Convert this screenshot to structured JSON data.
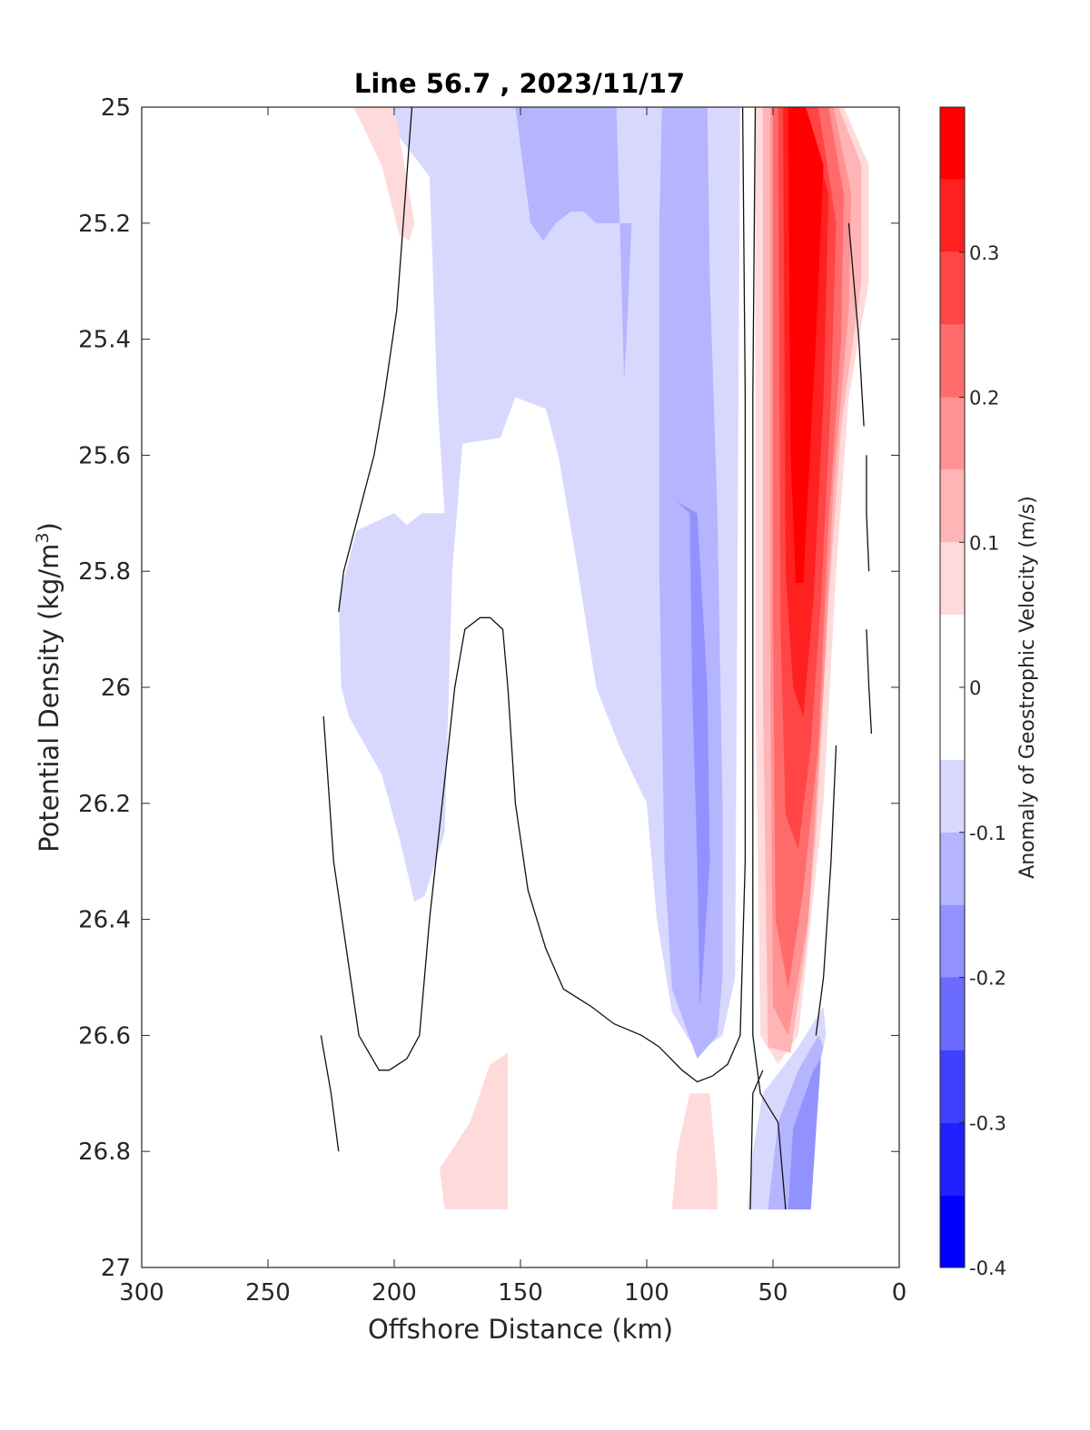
{
  "chart_data": {
    "type": "contour",
    "title": "Line 56.7 , 2023/11/17",
    "xlabel": "Offshore Distance (km)",
    "ylabel_main": "Potential Density (kg/m",
    "ylabel_sup": "3",
    "ylabel_close": ")",
    "xlim": [
      300,
      0
    ],
    "ylim": [
      27,
      25
    ],
    "x_reversed": true,
    "y_reversed": true,
    "xticks": [
      300,
      250,
      200,
      150,
      100,
      50,
      0
    ],
    "xtick_labels": [
      "300",
      "250",
      "200",
      "150",
      "100",
      "50",
      "0"
    ],
    "yticks": [
      25,
      25.2,
      25.4,
      25.6,
      25.8,
      26,
      26.2,
      26.4,
      26.6,
      26.8,
      27
    ],
    "ytick_labels": [
      "25",
      "25.2",
      "25.4",
      "25.6",
      "25.8",
      "26",
      "26.2",
      "26.4",
      "26.6",
      "26.8",
      "27"
    ],
    "colorbar": {
      "label": "Anomaly of Geostrophic Velocity (m/s)",
      "limits": [
        -0.4,
        0.4
      ],
      "ticks": [
        -0.4,
        -0.3,
        -0.2,
        -0.1,
        0,
        0.1,
        0.2,
        0.3
      ],
      "tick_labels": [
        "-0.4",
        "-0.3",
        "-0.2",
        "-0.1",
        "0",
        "0.1",
        "0.2",
        "0.3"
      ],
      "levels": [
        {
          "from": -0.4,
          "to": -0.35,
          "color": "#0000ff"
        },
        {
          "from": -0.35,
          "to": -0.3,
          "color": "#2020ff"
        },
        {
          "from": -0.3,
          "to": -0.25,
          "color": "#4040ff"
        },
        {
          "from": -0.25,
          "to": -0.2,
          "color": "#6b6bff"
        },
        {
          "from": -0.2,
          "to": -0.15,
          "color": "#9292ff"
        },
        {
          "from": -0.15,
          "to": -0.1,
          "color": "#b4b4ff"
        },
        {
          "from": -0.1,
          "to": -0.05,
          "color": "#d8d8ff"
        },
        {
          "from": -0.05,
          "to": 0.05,
          "color": "#ffffff"
        },
        {
          "from": 0.05,
          "to": 0.1,
          "color": "#ffdada"
        },
        {
          "from": 0.1,
          "to": 0.15,
          "color": "#ffb5b5"
        },
        {
          "from": 0.15,
          "to": 0.2,
          "color": "#ff9292"
        },
        {
          "from": 0.2,
          "to": 0.25,
          "color": "#ff6b6b"
        },
        {
          "from": 0.25,
          "to": 0.3,
          "color": "#ff4545"
        },
        {
          "from": 0.3,
          "to": 0.35,
          "color": "#ff2020"
        },
        {
          "from": 0.35,
          "to": 0.4,
          "color": "#ff0000"
        }
      ]
    },
    "filled_regions": [
      {
        "level": -0.075,
        "points": [
          [
            180,
            25
          ],
          [
            207,
            25
          ],
          [
            186,
            25.12
          ],
          [
            183,
            25.5
          ],
          [
            180,
            25.7
          ],
          [
            189,
            25.7
          ],
          [
            195,
            25.72
          ],
          [
            200,
            25.7
          ],
          [
            210,
            25.72
          ],
          [
            215,
            25.73
          ],
          [
            222,
            25.85
          ],
          [
            221,
            26.0
          ],
          [
            218,
            26.05
          ],
          [
            205,
            26.15
          ],
          [
            198,
            26.26
          ],
          [
            192,
            26.37
          ],
          [
            188,
            26.36
          ],
          [
            180,
            26.25
          ],
          [
            177,
            25.8
          ],
          [
            173,
            25.58
          ],
          [
            158,
            25.57
          ],
          [
            152,
            25.5
          ],
          [
            140,
            25.52
          ],
          [
            135,
            25.6
          ],
          [
            128,
            25.78
          ],
          [
            120,
            26.0
          ],
          [
            111,
            26.1
          ],
          [
            100,
            26.2
          ],
          [
            96,
            26.4
          ],
          [
            90,
            26.56
          ],
          [
            80,
            26.63
          ],
          [
            70,
            26.6
          ],
          [
            65,
            26.5
          ],
          [
            63,
            25
          ],
          [
            180,
            25
          ]
        ]
      },
      {
        "level": -0.125,
        "points": [
          [
            152,
            25
          ],
          [
            112,
            25
          ],
          [
            110,
            25.3
          ],
          [
            109,
            25.47
          ],
          [
            108,
            25.4
          ],
          [
            106,
            25.2
          ],
          [
            120,
            25.2
          ],
          [
            125,
            25.18
          ],
          [
            130,
            25.18
          ],
          [
            136,
            25.2
          ],
          [
            141,
            25.23
          ],
          [
            146,
            25.2
          ],
          [
            152,
            25
          ]
        ]
      },
      {
        "level": -0.125,
        "points": [
          [
            94,
            25
          ],
          [
            76,
            25
          ],
          [
            75,
            25.3
          ],
          [
            72,
            25.7
          ],
          [
            70,
            26.2
          ],
          [
            70,
            26.5
          ],
          [
            72,
            26.6
          ],
          [
            80,
            26.64
          ],
          [
            90,
            26.52
          ],
          [
            93,
            26.3
          ],
          [
            95,
            25.8
          ],
          [
            95,
            25.2
          ],
          [
            94,
            25
          ]
        ]
      },
      {
        "level": -0.175,
        "points": [
          [
            88,
            25.68
          ],
          [
            83,
            25.7
          ],
          [
            82,
            26.0
          ],
          [
            80,
            26.3
          ],
          [
            79,
            26.55
          ],
          [
            78,
            26.5
          ],
          [
            75,
            26.3
          ],
          [
            76,
            26.0
          ],
          [
            80,
            25.7
          ],
          [
            88,
            25.68
          ]
        ]
      },
      {
        "level": -0.075,
        "points": [
          [
            60,
            26.9
          ],
          [
            58,
            26.8
          ],
          [
            54,
            26.7
          ],
          [
            40,
            26.62
          ],
          [
            30,
            26.55
          ],
          [
            29,
            26.6
          ],
          [
            40,
            26.8
          ],
          [
            48,
            26.9
          ],
          [
            60,
            26.9
          ]
        ]
      },
      {
        "level": -0.125,
        "points": [
          [
            52,
            26.9
          ],
          [
            48,
            26.75
          ],
          [
            40,
            26.66
          ],
          [
            32,
            26.6
          ],
          [
            30,
            26.62
          ],
          [
            40,
            26.8
          ],
          [
            44,
            26.9
          ],
          [
            52,
            26.9
          ]
        ]
      },
      {
        "level": -0.175,
        "points": [
          [
            44,
            26.9
          ],
          [
            42,
            26.76
          ],
          [
            34,
            26.66
          ],
          [
            31,
            26.64
          ],
          [
            35,
            26.9
          ],
          [
            44,
            26.9
          ]
        ]
      },
      {
        "level": 0.075,
        "points": [
          [
            216,
            25
          ],
          [
            200,
            25
          ],
          [
            198,
            25.05
          ],
          [
            192,
            25.2
          ],
          [
            194,
            25.23
          ],
          [
            198,
            25.22
          ],
          [
            205,
            25.1
          ],
          [
            216,
            25
          ]
        ]
      },
      {
        "level": 0.075,
        "points": [
          [
            182,
            26.83
          ],
          [
            170,
            26.75
          ],
          [
            162,
            26.65
          ],
          [
            155,
            26.63
          ],
          [
            155,
            26.9
          ],
          [
            180,
            26.9
          ],
          [
            182,
            26.83
          ]
        ]
      },
      {
        "level": 0.075,
        "points": [
          [
            90,
            26.9
          ],
          [
            88,
            26.8
          ],
          [
            83,
            26.7
          ],
          [
            75,
            26.7
          ],
          [
            72,
            26.85
          ],
          [
            72,
            26.9
          ],
          [
            90,
            26.9
          ]
        ]
      },
      {
        "level": 0.075,
        "points": [
          [
            57,
            25
          ],
          [
            22,
            25
          ],
          [
            12,
            25.1
          ],
          [
            12,
            25.3
          ],
          [
            20,
            25.5
          ],
          [
            25,
            25.8
          ],
          [
            30,
            26.2
          ],
          [
            35,
            26.4
          ],
          [
            40,
            26.6
          ],
          [
            48,
            26.65
          ],
          [
            55,
            26.6
          ],
          [
            57,
            26.0
          ],
          [
            57,
            25
          ]
        ]
      },
      {
        "level": 0.125,
        "points": [
          [
            54,
            25
          ],
          [
            24,
            25
          ],
          [
            15,
            25.1
          ],
          [
            15,
            25.3
          ],
          [
            23,
            25.55
          ],
          [
            28,
            25.85
          ],
          [
            33,
            26.25
          ],
          [
            37,
            26.45
          ],
          [
            43,
            26.63
          ],
          [
            52,
            26.62
          ],
          [
            54,
            26.0
          ],
          [
            54,
            25
          ]
        ]
      },
      {
        "level": 0.175,
        "points": [
          [
            51,
            25
          ],
          [
            26,
            25
          ],
          [
            19,
            25.15
          ],
          [
            20,
            25.35
          ],
          [
            26,
            25.65
          ],
          [
            30,
            26.0
          ],
          [
            36,
            26.4
          ],
          [
            44,
            26.6
          ],
          [
            50,
            26.55
          ],
          [
            51,
            26.0
          ],
          [
            51,
            25
          ]
        ]
      },
      {
        "level": 0.225,
        "points": [
          [
            50,
            25
          ],
          [
            28,
            25
          ],
          [
            22,
            25.15
          ],
          [
            23,
            25.4
          ],
          [
            28,
            25.72
          ],
          [
            32,
            26.1
          ],
          [
            38,
            26.35
          ],
          [
            44,
            26.52
          ],
          [
            49,
            26.4
          ],
          [
            50,
            25.9
          ],
          [
            50,
            25
          ]
        ]
      },
      {
        "level": 0.275,
        "points": [
          [
            48,
            25
          ],
          [
            32,
            25
          ],
          [
            25,
            25.2
          ],
          [
            27,
            25.5
          ],
          [
            31,
            25.85
          ],
          [
            35,
            26.1
          ],
          [
            40,
            26.28
          ],
          [
            45,
            26.22
          ],
          [
            47,
            25.9
          ],
          [
            48,
            25
          ]
        ]
      },
      {
        "level": 0.325,
        "points": [
          [
            46,
            25
          ],
          [
            38,
            25
          ],
          [
            28,
            25.15
          ],
          [
            30,
            25.5
          ],
          [
            34,
            25.85
          ],
          [
            38,
            26.05
          ],
          [
            42,
            26.0
          ],
          [
            45,
            25.8
          ],
          [
            46,
            25
          ]
        ]
      },
      {
        "level": 0.375,
        "points": [
          [
            44,
            25
          ],
          [
            37,
            25
          ],
          [
            30,
            25.1
          ],
          [
            33,
            25.4
          ],
          [
            36,
            25.65
          ],
          [
            38,
            25.82
          ],
          [
            41,
            25.82
          ],
          [
            43,
            25.6
          ],
          [
            44,
            25
          ]
        ]
      }
    ],
    "contour_lines": [
      [
        [
          193,
          25
        ],
        [
          199,
          25.35
        ],
        [
          204,
          25.5
        ],
        [
          208,
          25.6
        ],
        [
          220,
          25.8
        ],
        [
          222,
          25.87
        ]
      ],
      [
        [
          228,
          26.05
        ],
        [
          224,
          26.3
        ],
        [
          214,
          26.6
        ],
        [
          206,
          26.66
        ],
        [
          202,
          26.66
        ],
        [
          195,
          26.64
        ],
        [
          190,
          26.6
        ],
        [
          186,
          26.4
        ],
        [
          181,
          26.2
        ],
        [
          176,
          26.0
        ],
        [
          172,
          25.9
        ],
        [
          166,
          25.88
        ],
        [
          162,
          25.88
        ],
        [
          157,
          25.9
        ],
        [
          155,
          26.0
        ],
        [
          152,
          26.2
        ],
        [
          147,
          26.35
        ],
        [
          140,
          26.45
        ],
        [
          133,
          26.52
        ],
        [
          122,
          26.55
        ],
        [
          113,
          26.58
        ],
        [
          102,
          26.6
        ],
        [
          95,
          26.62
        ],
        [
          86,
          26.66
        ],
        [
          80,
          26.68
        ],
        [
          74,
          26.67
        ],
        [
          68,
          26.65
        ],
        [
          63,
          26.6
        ],
        [
          61,
          26.3
        ],
        [
          61,
          25.5
        ],
        [
          62,
          25
        ]
      ],
      [
        [
          57,
          25
        ],
        [
          58,
          25.5
        ],
        [
          58,
          26.0
        ],
        [
          58,
          26.5
        ],
        [
          58,
          26.6
        ],
        [
          55,
          26.7
        ],
        [
          48,
          26.75
        ],
        [
          45,
          26.9
        ]
      ],
      [
        [
          229,
          26.6
        ],
        [
          225,
          26.7
        ],
        [
          222,
          26.8
        ]
      ],
      [
        [
          59,
          26.9
        ],
        [
          58,
          26.7
        ],
        [
          54,
          26.66
        ]
      ],
      [
        [
          20,
          25.2
        ],
        [
          16,
          25.4
        ],
        [
          14,
          25.55
        ]
      ],
      [
        [
          13,
          25.6
        ],
        [
          13,
          25.7
        ],
        [
          12,
          25.8
        ]
      ],
      [
        [
          13,
          25.9
        ],
        [
          12,
          26.0
        ],
        [
          11,
          26.08
        ]
      ],
      [
        [
          25,
          26.1
        ],
        [
          27,
          26.3
        ],
        [
          30,
          26.5
        ],
        [
          33,
          26.6
        ]
      ]
    ]
  }
}
